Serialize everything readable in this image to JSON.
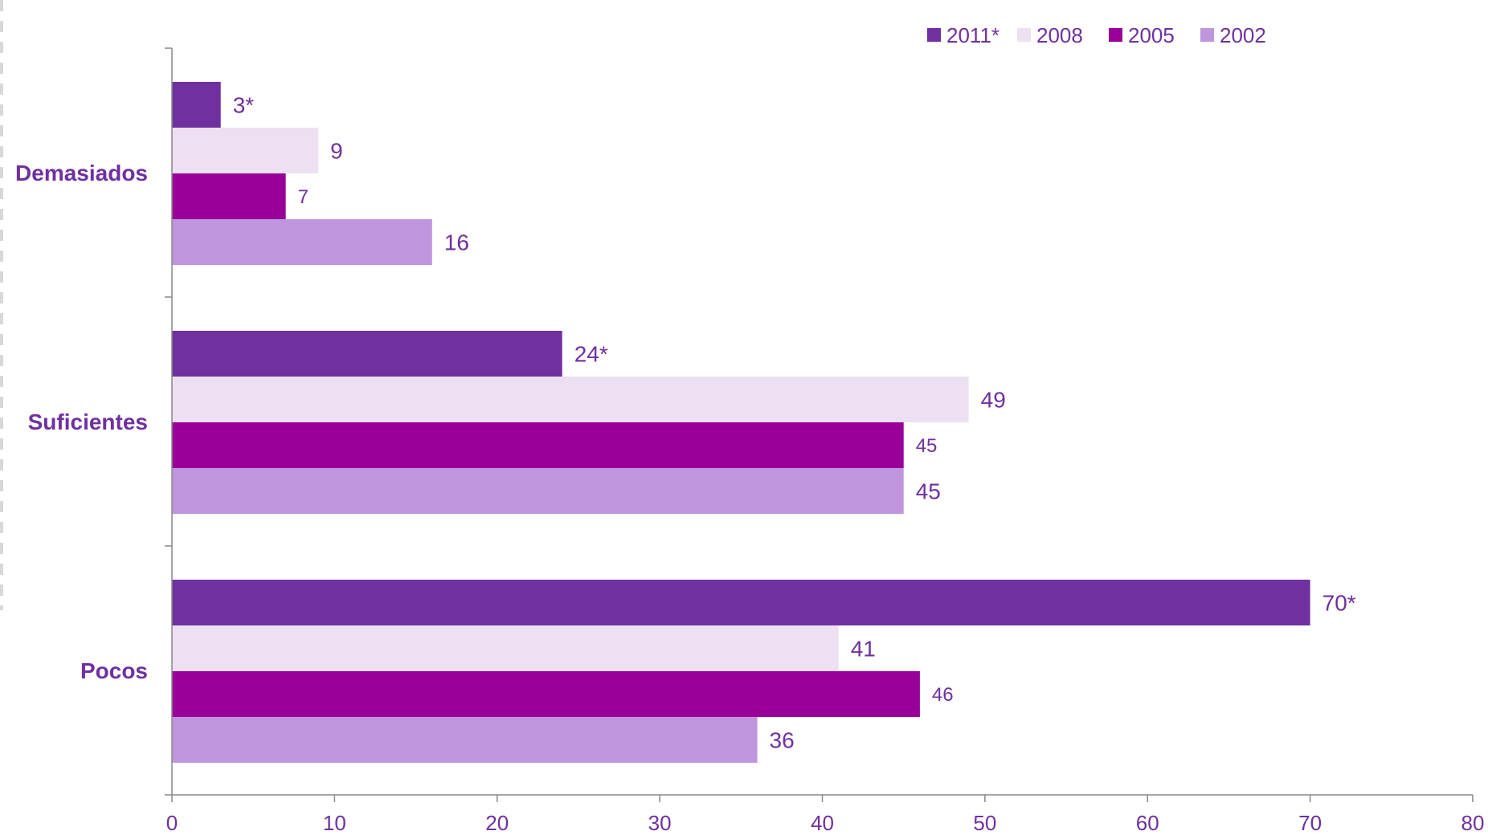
{
  "chart_data": {
    "type": "bar",
    "orientation": "horizontal",
    "title": "",
    "xlabel": "",
    "ylabel": "",
    "xlim": [
      0,
      80
    ],
    "x_ticks": [
      0,
      10,
      20,
      30,
      40,
      50,
      60,
      70,
      80
    ],
    "grid": false,
    "legend_position": "top-right",
    "categories": [
      "Demasiados",
      "Suficientes",
      "Pocos"
    ],
    "series": [
      {
        "name": "2011*",
        "color": "#7030a0",
        "values": [
          3,
          24,
          70
        ],
        "labels": [
          "3*",
          "24*",
          "70*"
        ]
      },
      {
        "name": "2008",
        "color": "#ede0f2",
        "values": [
          9,
          49,
          41
        ],
        "labels": [
          "9",
          "49",
          "41"
        ]
      },
      {
        "name": "2005",
        "color": "#990099",
        "values": [
          7,
          45,
          46
        ],
        "labels": [
          "7",
          "45",
          "46"
        ]
      },
      {
        "name": "2002",
        "color": "#bf96de",
        "values": [
          16,
          45,
          36
        ],
        "labels": [
          "16",
          "45",
          "36"
        ]
      }
    ],
    "colors": {
      "text": "#7030a0",
      "axis": "#888888"
    }
  }
}
